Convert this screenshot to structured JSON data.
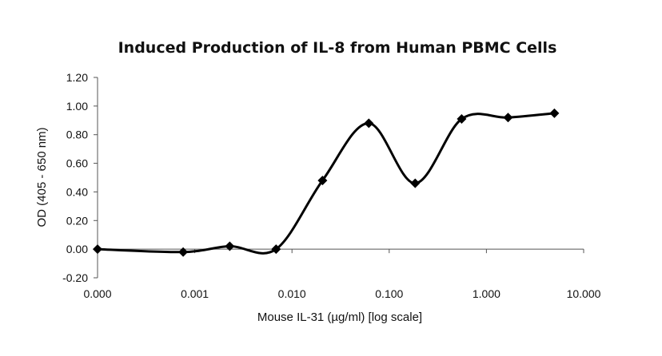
{
  "chart_data": {
    "type": "line",
    "title": "Induced Production of IL-8 from Human PBMC Cells",
    "xlabel": "Mouse IL-31 (µg/ml) [log scale]",
    "ylabel": "OD (405 - 650 nm)",
    "x_scale": "log",
    "x_tick_labels": [
      "0.000",
      "0.001",
      "0.010",
      "0.100",
      "1.000",
      "10.000"
    ],
    "y_tick_labels": [
      "-0.20",
      "0.00",
      "0.20",
      "0.40",
      "0.60",
      "0.80",
      "1.00",
      "1.20"
    ],
    "ylim": [
      -0.2,
      1.2
    ],
    "grid": false,
    "marker": "diamond",
    "line_style": "smooth",
    "series": [
      {
        "color": "#000000",
        "x": [
          0.0001,
          0.00076,
          0.00229,
          0.00686,
          0.0206,
          0.0617,
          0.185,
          0.556,
          1.67,
          5.0
        ],
        "y": [
          0.0,
          -0.02,
          0.02,
          0.0,
          0.48,
          0.88,
          0.46,
          0.91,
          0.92,
          0.95
        ]
      }
    ]
  }
}
